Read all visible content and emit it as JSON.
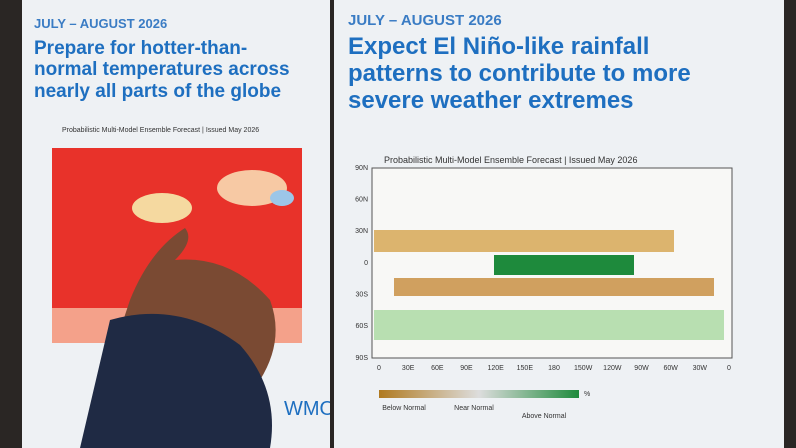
{
  "left_panel": {
    "date": "JULY – AUGUST 2026",
    "headline": [
      "Prepare for hotter-than-",
      "normal temperatures across",
      "nearly all parts of the globe"
    ],
    "map_title": "Probabilistic Multi-Model Ensemble Forecast | Issued May 2026",
    "logo": "WMO"
  },
  "right_panel": {
    "date": "JULY – AUGUST 2026",
    "headline": [
      "Expect El Niño-like rainfall",
      "patterns to contribute to more",
      "severe weather extremes"
    ],
    "map_title": "Probabilistic Multi-Model Ensemble Forecast | Issued May 2026",
    "lat_labels": [
      "90N",
      "60N",
      "30N",
      "0",
      "30S",
      "60S",
      "90S"
    ],
    "lon_labels": [
      "0",
      "30E",
      "60E",
      "90E",
      "120E",
      "150E",
      "180",
      "150W",
      "120W",
      "90W",
      "60W",
      "30W",
      "0"
    ],
    "legend": {
      "below": "Below Normal",
      "near": "Near Normal",
      "above": "Above Normal",
      "unit": "%"
    }
  }
}
